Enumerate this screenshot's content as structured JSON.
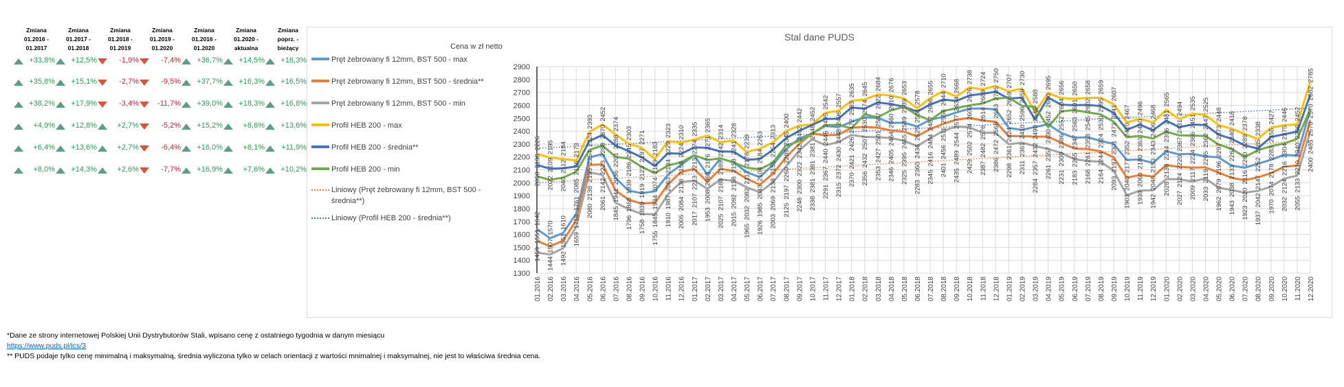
{
  "table": {
    "headers": [
      "Zmiana\n01.2016 -\n01.2017",
      "Zmiana\n01.2017 -\n01.2018",
      "Zmiana\n01.2018 -\n01.2019",
      "Zmiana\n01.2019 -\n01.2020",
      "Zmiana\n01.2016 -\n01.2020",
      "Zmiana\n01.2020 -\naktualna",
      "Zmiana\npoprz. - bieżący"
    ],
    "rows": [
      [
        "+33,8%",
        "+12,5%",
        "-1,9%",
        "-7,4%",
        "+36,7%",
        "+14,5%",
        "+16,3%"
      ],
      [
        "+35,8%",
        "+15,1%",
        "-2,7%",
        "-9,5%",
        "+37,7%",
        "+16,3%",
        "+16,5%"
      ],
      [
        "+38,2%",
        "+17,9%",
        "-3,4%",
        "-11,7%",
        "+39,0%",
        "+18,3%",
        "+16,8%"
      ],
      [
        "+4,9%",
        "+12,8%",
        "+2,7%",
        "-5,2%",
        "+15,2%",
        "+8,6%",
        "+13,6%"
      ],
      [
        "+6,4%",
        "+13,6%",
        "+2,7%",
        "-6,4%",
        "+16,0%",
        "+8,1%",
        "+11,9%"
      ],
      [
        "+8,0%",
        "+14,3%",
        "+2,6%",
        "-7,7%",
        "+16,9%",
        "+7,6%",
        "+10,2%"
      ]
    ],
    "colors": {
      "up_arrow": "#5e9e84",
      "down_arrow": "#d9553a",
      "positive": "#1ea34e",
      "negative": "#e0162b"
    }
  },
  "chart_data": {
    "type": "line",
    "title": "Stal dane PUDS",
    "ylabel": "Cena w zł netto",
    "xlabel": "",
    "ylim": [
      1300,
      2900
    ],
    "ytick_step": 100,
    "grid": true,
    "legend_position": "left",
    "data_labels": true,
    "categories": [
      "01.2016",
      "02.2016",
      "03.2016",
      "04.2016",
      "05.2016",
      "06.2016",
      "07.2016",
      "08.2016",
      "09.2016",
      "10.2016",
      "11.2016",
      "12.2016",
      "01.2017",
      "02.2017",
      "03.2017",
      "04.2017",
      "05.2017",
      "06.2017",
      "07.2017",
      "08.2017",
      "09.2017",
      "10.2017",
      "11.2017",
      "12.2017",
      "01.2018",
      "02.2018",
      "03.2018",
      "04.2018",
      "05.2018",
      "06.2018",
      "07.2018",
      "08.2018",
      "09.2018",
      "10.2018",
      "11.2018",
      "12.2018",
      "01.2019",
      "02.2019",
      "03.2019",
      "04.2019",
      "05.2019",
      "06.2019",
      "07.2019",
      "08.2019",
      "09.2019",
      "10.2019",
      "11.2019",
      "12.2019",
      "01.2020",
      "02.2020",
      "03.2020",
      "04.2020",
      "05.2020",
      "06.2020",
      "07.2020",
      "08.2020",
      "09.2020",
      "10.2020",
      "11.2020",
      "12.2020"
    ],
    "series": [
      {
        "name": "Pręt żebrowany fi 12mm, BST 500 - max",
        "color": "#5b9bd5",
        "values": [
          1642,
          1570,
          1610,
          1761,
          2195,
          2223,
          2036,
          1939,
          1919,
          1934,
          2063,
          2138,
          2213,
          2063,
          2188,
          2158,
          2082,
          2043,
          2138,
          2260,
          2342,
          2381,
          2440,
          2430,
          2472,
          2507,
          2501,
          2464,
          2465,
          2436,
          2487,
          2511,
          2544,
          2574,
          2576,
          2568,
          2424,
          2410,
          2432,
          2452,
          2386,
          2347,
          2353,
          2324,
          2301,
          2177,
          2180,
          2153,
          2244,
          2220,
          2224,
          2205,
          2196,
          2133,
          2116,
          2147,
          2178,
          2216,
          2210,
          2570
        ]
      },
      {
        "name": "Pręt żebrowany fi 12mm, BST 500 - średnia**",
        "color": "#ed7d31",
        "values": [
          1551,
          1507,
          1551,
          1710,
          2138,
          2142,
          1941,
          1868,
          1839,
          1845,
          1987,
          2084,
          2107,
          2008,
          2107,
          2092,
          2032,
          1985,
          2069,
          2197,
          2300,
          2381,
          2367,
          2372,
          2426,
          2432,
          2427,
          2405,
          2395,
          2360,
          2416,
          2456,
          2489,
          2502,
          2482,
          2472,
          2361,
          2361,
          2357,
          2357,
          2309,
          2265,
          2261,
          2244,
          2197,
          2040,
          2060,
          2048,
          2136,
          2124,
          2117,
          2119,
          2079,
          2038,
          2020,
          2042,
          2074,
          2124,
          2133,
          2485
        ]
      },
      {
        "name": "Pręt żebrowany fi 12mm, BST 500 - min",
        "color": "#a5a5a5",
        "values": [
          1459,
          1444,
          1492,
          1659,
          2080,
          2061,
          1845,
          1796,
          1758,
          1755,
          1910,
          2005,
          2017,
          1953,
          2025,
          2015,
          1965,
          1926,
          2003,
          2125,
          2248,
          2338,
          2291,
          2315,
          2370,
          2356,
          2353,
          2346,
          2325,
          2283,
          2345,
          2401,
          2435,
          2429,
          2387,
          2386,
          2298,
          2311,
          2284,
          2261,
          2231,
          2183,
          2168,
          2164,
          2093,
          1903,
          1939,
          1942,
          2028,
          2027,
          2009,
          2033,
          1962,
          1943,
          1923,
          1937,
          1970,
          2032,
          2055,
          2400
        ]
      },
      {
        "name": "Profil HEB 200 - max",
        "color": "#ffc000",
        "values": [
          2226,
          2195,
          2184,
          2173,
          2393,
          2452,
          2374,
          2303,
          2271,
          2183,
          2323,
          2310,
          2335,
          2365,
          2314,
          2328,
          2239,
          2263,
          2313,
          2400,
          2442,
          2452,
          2542,
          2557,
          2635,
          2645,
          2684,
          2676,
          2653,
          2578,
          2655,
          2710,
          2668,
          2738,
          2724,
          2750,
          2707,
          2730,
          2546,
          2695,
          2656,
          2650,
          2658,
          2659,
          2607,
          2467,
          2496,
          2468,
          2565,
          2494,
          2535,
          2525,
          2448,
          2418,
          2378,
          2338,
          2427,
          2446,
          2452,
          2785
        ]
      },
      {
        "name": "Profil HEB 200 - średnia**",
        "color": "#4472c4",
        "values": [
          2138,
          2109,
          2112,
          2126,
          2324,
          2370,
          2288,
          2245,
          2197,
          2129,
          2229,
          2224,
          2274,
          2271,
          2242,
          2241,
          2178,
          2184,
          2254,
          2345,
          2402,
          2448,
          2495,
          2496,
          2583,
          2574,
          2622,
          2610,
          2589,
          2551,
          2606,
          2644,
          2634,
          2676,
          2689,
          2705,
          2652,
          2659,
          2490,
          2660,
          2604,
          2601,
          2602,
          2595,
          2541,
          2410,
          2450,
          2406,
          2481,
          2431,
          2451,
          2447,
          2373,
          2340,
          2289,
          2265,
          2355,
          2375,
          2396,
          2682
        ]
      },
      {
        "name": "Profil HEB 200 - min",
        "color": "#70ad47",
        "values": [
          2050,
          2022,
          2040,
          2085,
          2254,
          2288,
          2201,
          2186,
          2123,
          2074,
          2134,
          2158,
          2213,
          2176,
          2189,
          2158,
          2117,
          2104,
          2155,
          2289,
          2322,
          2381,
          2446,
          2448,
          2421,
          2530,
          2507,
          2560,
          2589,
          2525,
          2484,
          2556,
          2577,
          2600,
          2614,
          2653,
          2659,
          2596,
          2588,
          2430,
          2552,
          2563,
          2545,
          2530,
          2473,
          2352,
          2363,
          2343,
          2396,
          2367,
          2366,
          2362,
          2297,
          2262,
          2200,
          2252,
          2283,
          2304,
          2340,
          2570
        ]
      }
    ],
    "trendlines": [
      {
        "name": "Liniowy (Pręt żebrowany fi 12mm, BST 500 - średnia**)",
        "of_series": 1,
        "type": "linear",
        "color": "#ed7d31"
      },
      {
        "name": "Liniowy (Profil HEB 200 - średnia**)",
        "of_series": 4,
        "type": "linear",
        "color": "#4472c4"
      }
    ]
  },
  "footnotes": {
    "note1": "*Dane ze strony internetowej Polskiej Unii Dystrybutorów Stali, wpisano cenę z ostatniego tygodnia w danym miesiącu",
    "link": "https://www.puds.pl/ics/3",
    "note2": "** PUDS podaje tylko cenę minimalną i maksymalną, średnia wyliczona tylko w celach orientacji z wartości mnimalnej i maksymalnej, nie jest to właściwa średnia cena."
  }
}
